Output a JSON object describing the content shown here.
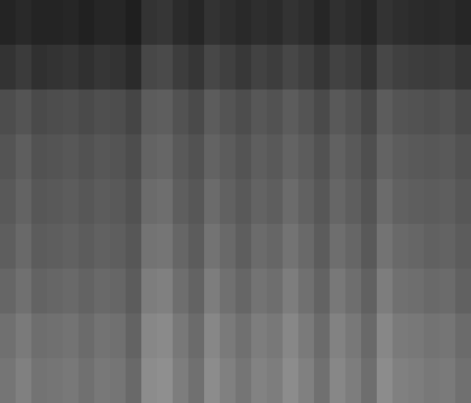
{
  "chart_data": {
    "type": "heatmap",
    "color": "gray",
    "tick_labels": false,
    "cells": [
      [
        14,
        16,
        14,
        14,
        15,
        13,
        15,
        15,
        12,
        20,
        21,
        17,
        15,
        20,
        18,
        16,
        18,
        17,
        20,
        18,
        15,
        19,
        17,
        15,
        20,
        18,
        17,
        16,
        17,
        15
      ],
      [
        20,
        23,
        19,
        20,
        21,
        19,
        21,
        20,
        17,
        28,
        29,
        24,
        21,
        28,
        25,
        22,
        26,
        24,
        28,
        25,
        21,
        26,
        24,
        20,
        28,
        25,
        24,
        23,
        24,
        21
      ],
      [
        30,
        33,
        29,
        30,
        31,
        29,
        31,
        30,
        27,
        36,
        37,
        32,
        29,
        36,
        33,
        30,
        34,
        32,
        36,
        33,
        29,
        35,
        32,
        28,
        36,
        33,
        32,
        31,
        32,
        29
      ],
      [
        33,
        37,
        32,
        33,
        34,
        32,
        34,
        33,
        30,
        39,
        40,
        35,
        32,
        39,
        36,
        33,
        37,
        35,
        39,
        36,
        32,
        38,
        35,
        31,
        39,
        36,
        35,
        34,
        35,
        32
      ],
      [
        35,
        39,
        34,
        35,
        36,
        34,
        36,
        35,
        32,
        42,
        43,
        37,
        34,
        42,
        38,
        35,
        39,
        37,
        42,
        38,
        34,
        40,
        37,
        33,
        42,
        38,
        37,
        36,
        37,
        34
      ],
      [
        37,
        41,
        36,
        37,
        38,
        36,
        38,
        37,
        34,
        45,
        46,
        40,
        36,
        45,
        41,
        37,
        42,
        40,
        45,
        41,
        36,
        43,
        40,
        35,
        45,
        41,
        40,
        38,
        39,
        36
      ],
      [
        40,
        44,
        39,
        40,
        41,
        39,
        41,
        40,
        36,
        49,
        50,
        43,
        39,
        49,
        44,
        40,
        45,
        43,
        49,
        44,
        39,
        47,
        43,
        38,
        49,
        44,
        43,
        41,
        42,
        38
      ],
      [
        44,
        48,
        43,
        44,
        45,
        42,
        45,
        44,
        39,
        53,
        54,
        47,
        42,
        53,
        48,
        44,
        49,
        47,
        53,
        48,
        42,
        51,
        47,
        41,
        53,
        48,
        47,
        45,
        46,
        42
      ],
      [
        46,
        50,
        45,
        46,
        47,
        44,
        47,
        46,
        41,
        55,
        56,
        49,
        44,
        55,
        50,
        46,
        51,
        49,
        55,
        50,
        44,
        53,
        49,
        43,
        55,
        50,
        49,
        47,
        48,
        44
      ]
    ]
  }
}
